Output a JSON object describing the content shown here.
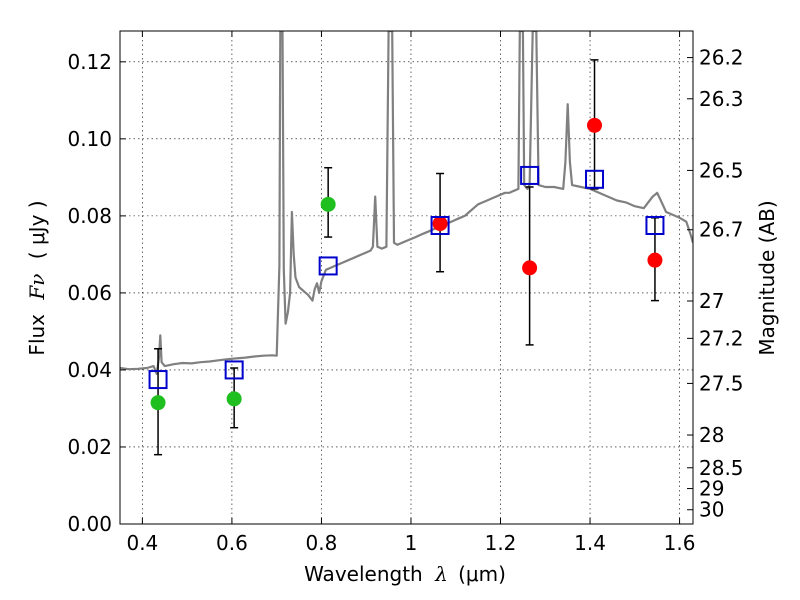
{
  "chart_data": {
    "type": "scatter",
    "title": "",
    "xlabel_prefix": "Wavelength",
    "xlabel_symbol": "λ",
    "xlabel_unit": "(μm)",
    "ylabel_prefix": "Flux",
    "ylabel_symbol": "Fν",
    "ylabel_unit": "( μJy )",
    "y2label": "Magnitude (AB)",
    "xlim": [
      0.35,
      1.63
    ],
    "ylim": [
      0.0,
      0.128
    ],
    "grid": true,
    "x_ticks": [
      0.4,
      0.6,
      0.8,
      1.0,
      1.2,
      1.4,
      1.6
    ],
    "x_tick_labels": [
      "0.4",
      "0.6",
      "0.8",
      "1",
      "1.2",
      "1.4",
      "1.6"
    ],
    "y_ticks": [
      0.0,
      0.02,
      0.04,
      0.06,
      0.08,
      0.1,
      0.12
    ],
    "y_tick_labels": [
      "0.00",
      "0.02",
      "0.04",
      "0.06",
      "0.08",
      "0.10",
      "0.12"
    ],
    "y2_ticks": [
      {
        "label": "26.2",
        "flux": 0.1211
      },
      {
        "label": "26.3",
        "flux": 0.1104
      },
      {
        "label": "26.5",
        "flux": 0.0918
      },
      {
        "label": "26.7",
        "flux": 0.0764
      },
      {
        "label": "27",
        "flux": 0.0579
      },
      {
        "label": "27.2",
        "flux": 0.0482
      },
      {
        "label": "27.5",
        "flux": 0.0365
      },
      {
        "label": "28",
        "flux": 0.0231
      },
      {
        "label": "28.5",
        "flux": 0.0146
      },
      {
        "label": "29",
        "flux": 0.0092
      },
      {
        "label": "30",
        "flux": 0.0037
      }
    ],
    "colors": {
      "spectrum": "#808080",
      "green_points": "#1fbf1f",
      "red_points": "#ff0000",
      "model_squares": "#0000cc",
      "error_bars": "#000000"
    },
    "series": [
      {
        "kind": "line",
        "points": [
          [
            0.35,
            0.0405
          ],
          [
            0.37,
            0.0402
          ],
          [
            0.39,
            0.0403
          ],
          [
            0.41,
            0.0405
          ],
          [
            0.425,
            0.041
          ],
          [
            0.432,
            0.039
          ],
          [
            0.437,
            0.043
          ],
          [
            0.44,
            0.049
          ],
          [
            0.443,
            0.042
          ],
          [
            0.45,
            0.041
          ],
          [
            0.47,
            0.0415
          ],
          [
            0.49,
            0.0418
          ],
          [
            0.51,
            0.0417
          ],
          [
            0.53,
            0.042
          ],
          [
            0.55,
            0.0422
          ],
          [
            0.57,
            0.0425
          ],
          [
            0.59,
            0.0428
          ],
          [
            0.61,
            0.043
          ],
          [
            0.63,
            0.0432
          ],
          [
            0.65,
            0.0435
          ],
          [
            0.67,
            0.0437
          ],
          [
            0.69,
            0.0438
          ],
          [
            0.7,
            0.0437
          ],
          [
            0.703,
            0.055
          ],
          [
            0.706,
            0.067
          ],
          [
            0.708,
            0.128
          ],
          [
            0.713,
            0.128
          ],
          [
            0.716,
            0.066
          ],
          [
            0.72,
            0.052
          ],
          [
            0.725,
            0.055
          ],
          [
            0.73,
            0.06
          ],
          [
            0.734,
            0.081
          ],
          [
            0.738,
            0.07
          ],
          [
            0.742,
            0.064
          ],
          [
            0.75,
            0.0615
          ],
          [
            0.76,
            0.0605
          ],
          [
            0.77,
            0.0595
          ],
          [
            0.78,
            0.058
          ],
          [
            0.785,
            0.061
          ],
          [
            0.79,
            0.0625
          ],
          [
            0.795,
            0.06
          ],
          [
            0.8,
            0.063
          ],
          [
            0.81,
            0.066
          ],
          [
            0.82,
            0.0665
          ],
          [
            0.83,
            0.067
          ],
          [
            0.84,
            0.0675
          ],
          [
            0.85,
            0.068
          ],
          [
            0.86,
            0.0685
          ],
          [
            0.87,
            0.069
          ],
          [
            0.88,
            0.0695
          ],
          [
            0.89,
            0.07
          ],
          [
            0.9,
            0.0705
          ],
          [
            0.91,
            0.071
          ],
          [
            0.915,
            0.072
          ],
          [
            0.92,
            0.085
          ],
          [
            0.925,
            0.072
          ],
          [
            0.935,
            0.0715
          ],
          [
            0.945,
            0.072
          ],
          [
            0.95,
            0.128
          ],
          [
            0.958,
            0.128
          ],
          [
            0.962,
            0.073
          ],
          [
            0.97,
            0.0725
          ],
          [
            0.98,
            0.073
          ],
          [
            0.99,
            0.0735
          ],
          [
            1.0,
            0.074
          ],
          [
            1.01,
            0.0745
          ],
          [
            1.02,
            0.075
          ],
          [
            1.03,
            0.0755
          ],
          [
            1.04,
            0.076
          ],
          [
            1.05,
            0.0765
          ],
          [
            1.06,
            0.077
          ],
          [
            1.07,
            0.0775
          ],
          [
            1.08,
            0.078
          ],
          [
            1.09,
            0.0785
          ],
          [
            1.1,
            0.079
          ],
          [
            1.11,
            0.0795
          ],
          [
            1.12,
            0.08
          ],
          [
            1.13,
            0.081
          ],
          [
            1.14,
            0.082
          ],
          [
            1.15,
            0.083
          ],
          [
            1.16,
            0.0835
          ],
          [
            1.17,
            0.084
          ],
          [
            1.18,
            0.0845
          ],
          [
            1.19,
            0.085
          ],
          [
            1.2,
            0.0855
          ],
          [
            1.21,
            0.086
          ],
          [
            1.22,
            0.086
          ],
          [
            1.23,
            0.0865
          ],
          [
            1.24,
            0.087
          ],
          [
            1.243,
            0.128
          ],
          [
            1.25,
            0.128
          ],
          [
            1.253,
            0.088
          ],
          [
            1.26,
            0.087
          ],
          [
            1.265,
            0.088
          ],
          [
            1.272,
            0.128
          ],
          [
            1.28,
            0.128
          ],
          [
            1.285,
            0.088
          ],
          [
            1.3,
            0.0875
          ],
          [
            1.32,
            0.0875
          ],
          [
            1.34,
            0.087
          ],
          [
            1.345,
            0.094
          ],
          [
            1.35,
            0.109
          ],
          [
            1.355,
            0.094
          ],
          [
            1.36,
            0.088
          ],
          [
            1.38,
            0.0875
          ],
          [
            1.4,
            0.087
          ],
          [
            1.42,
            0.086
          ],
          [
            1.44,
            0.085
          ],
          [
            1.46,
            0.084
          ],
          [
            1.48,
            0.0835
          ],
          [
            1.5,
            0.0825
          ],
          [
            1.52,
            0.082
          ],
          [
            1.53,
            0.0835
          ],
          [
            1.54,
            0.085
          ],
          [
            1.55,
            0.086
          ],
          [
            1.56,
            0.0835
          ],
          [
            1.57,
            0.081
          ],
          [
            1.58,
            0.0805
          ],
          [
            1.6,
            0.0795
          ],
          [
            1.615,
            0.0785
          ],
          [
            1.625,
            0.075
          ],
          [
            1.63,
            0.073
          ]
        ]
      },
      {
        "kind": "points",
        "style": "green-circle",
        "points": [
          [
            0.435,
            0.0315
          ],
          [
            0.605,
            0.0325
          ],
          [
            0.815,
            0.083
          ]
        ]
      },
      {
        "kind": "points",
        "style": "red-circle",
        "points": [
          [
            1.065,
            0.078
          ],
          [
            1.265,
            0.0665
          ],
          [
            1.41,
            0.1035
          ],
          [
            1.545,
            0.0685
          ]
        ]
      },
      {
        "kind": "points",
        "style": "blue-square",
        "points": [
          [
            0.435,
            0.0375
          ],
          [
            0.605,
            0.04
          ],
          [
            0.815,
            0.067
          ],
          [
            1.065,
            0.0775
          ],
          [
            1.265,
            0.0905
          ],
          [
            1.41,
            0.0895
          ],
          [
            1.545,
            0.0775
          ]
        ]
      },
      {
        "kind": "errorbars",
        "bars": [
          {
            "x": 0.435,
            "low": 0.018,
            "high": 0.0455
          },
          {
            "x": 0.605,
            "low": 0.025,
            "high": 0.0405
          },
          {
            "x": 0.815,
            "low": 0.0745,
            "high": 0.0925
          },
          {
            "x": 1.065,
            "low": 0.0655,
            "high": 0.091
          },
          {
            "x": 1.265,
            "low": 0.0465,
            "high": 0.0875
          },
          {
            "x": 1.41,
            "low": 0.087,
            "high": 0.1205
          },
          {
            "x": 1.545,
            "low": 0.058,
            "high": 0.0795
          }
        ]
      }
    ]
  }
}
